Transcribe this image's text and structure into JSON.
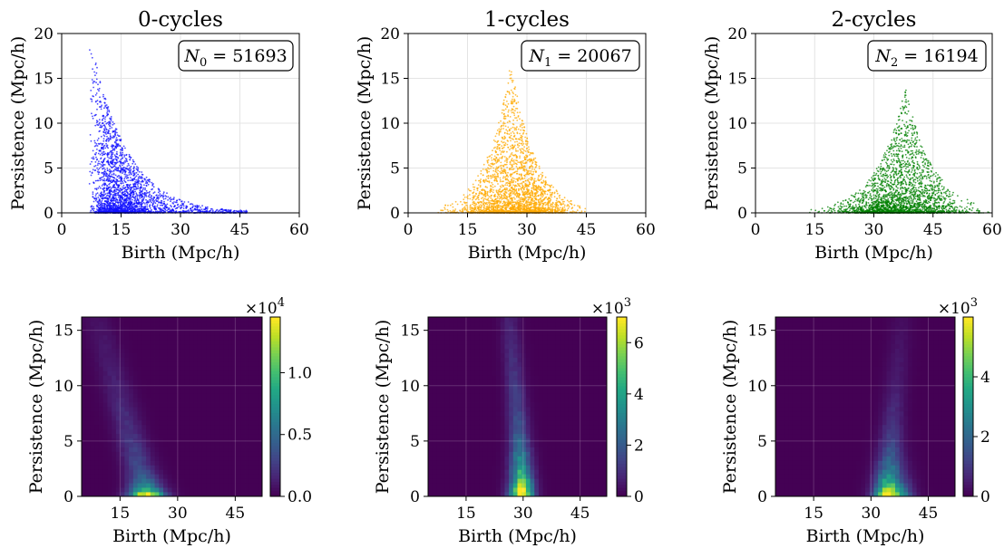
{
  "figure": {
    "scatter_titles": [
      "0-cycles",
      "1-cycles",
      "2-cycles"
    ]
  },
  "chart_data": [
    {
      "type": "scatter",
      "title": "0-cycles",
      "xlabel": "Birth (Mpc/h)",
      "ylabel": "Persistence (Mpc/h)",
      "xlim": [
        0,
        60
      ],
      "ylim": [
        0,
        20
      ],
      "xticks": [
        0,
        15,
        30,
        45,
        60
      ],
      "yticks": [
        0,
        5,
        10,
        15,
        20
      ],
      "grid": true,
      "color": "#1010ff",
      "annotation": {
        "symbol": "N",
        "subscript": "0",
        "value": "51693"
      },
      "point_cloud": {
        "count": 51693,
        "birth_peak": 14,
        "birth_min": 7,
        "birth_max": 50,
        "max_persistence": 18,
        "note_shape": "peaked near small birth, decaying tail"
      }
    },
    {
      "type": "scatter",
      "title": "1-cycles",
      "xlabel": "Birth (Mpc/h)",
      "ylabel": "Persistence (Mpc/h)",
      "xlim": [
        0,
        60
      ],
      "ylim": [
        0,
        20
      ],
      "xticks": [
        0,
        15,
        30,
        45,
        60
      ],
      "yticks": [
        0,
        5,
        10,
        15,
        20
      ],
      "grid": true,
      "color": "#ffaa00",
      "annotation": {
        "symbol": "N",
        "subscript": "1",
        "value": "20067"
      },
      "point_cloud": {
        "count": 20067,
        "birth_peak": 27,
        "birth_min": 11,
        "birth_max": 55,
        "max_persistence": 17.5
      }
    },
    {
      "type": "scatter",
      "title": "2-cycles",
      "xlabel": "Birth (Mpc/h)",
      "ylabel": "Persistence (Mpc/h)",
      "xlim": [
        0,
        60
      ],
      "ylim": [
        0,
        20
      ],
      "xticks": [
        0,
        15,
        30,
        45,
        60
      ],
      "yticks": [
        0,
        5,
        10,
        15,
        20
      ],
      "grid": true,
      "color": "#008000",
      "annotation": {
        "symbol": "N",
        "subscript": "2",
        "value": "16194"
      },
      "point_cloud": {
        "count": 16194,
        "birth_peak": 37,
        "birth_min": 12,
        "birth_max": 60,
        "max_persistence": 14
      }
    },
    {
      "type": "heatmap",
      "xlabel": "Birth (Mpc/h)",
      "ylabel": "Persistence (Mpc/h)",
      "xlim": [
        5,
        52
      ],
      "ylim": [
        0,
        16.2
      ],
      "xticks": [
        15,
        30,
        45
      ],
      "yticks": [
        0,
        5,
        10,
        15
      ],
      "colormap": "viridis",
      "colorbar": {
        "min": 0,
        "max": 1.45,
        "ticks": [
          "0.0",
          "0.5",
          "1.0"
        ],
        "tick_values": [
          0,
          0.5,
          1.0
        ],
        "multiplier": "×10",
        "exponent": "4"
      },
      "peak_birth": 22
    },
    {
      "type": "heatmap",
      "xlabel": "Birth (Mpc/h)",
      "ylabel": "Persistence (Mpc/h)",
      "xlim": [
        5,
        52
      ],
      "ylim": [
        0,
        16.2
      ],
      "xticks": [
        15,
        30,
        45
      ],
      "yticks": [
        0,
        5,
        10,
        15
      ],
      "colormap": "viridis",
      "colorbar": {
        "min": 0,
        "max": 7,
        "ticks": [
          "0",
          "2",
          "4",
          "6"
        ],
        "tick_values": [
          0,
          2,
          4,
          6
        ],
        "multiplier": "×10",
        "exponent": "3"
      },
      "peak_birth": 29
    },
    {
      "type": "heatmap",
      "xlabel": "Birth (Mpc/h)",
      "ylabel": "Persistence (Mpc/h)",
      "xlim": [
        5,
        52
      ],
      "ylim": [
        0,
        16.2
      ],
      "xticks": [
        15,
        30,
        45
      ],
      "yticks": [
        0,
        5,
        10,
        15
      ],
      "colormap": "viridis",
      "colorbar": {
        "min": 0,
        "max": 6,
        "ticks": [
          "0",
          "2",
          "4"
        ],
        "tick_values": [
          0,
          2,
          4
        ],
        "multiplier": "×10",
        "exponent": "3"
      },
      "peak_birth": 36
    }
  ]
}
